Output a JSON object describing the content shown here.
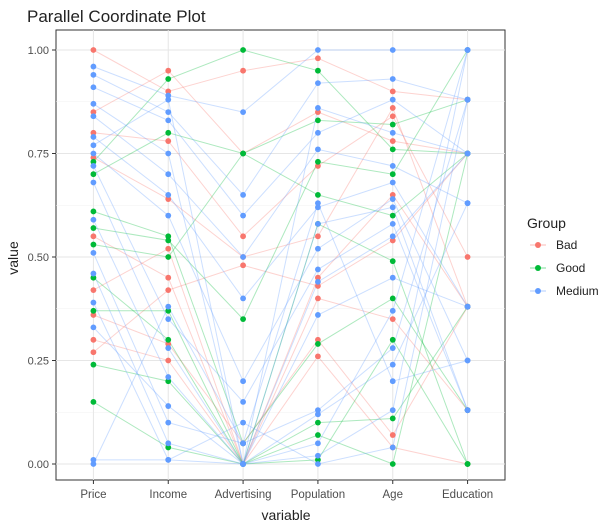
{
  "chart_data": {
    "type": "line",
    "title": "Parallel Coordinate Plot",
    "xlabel": "variable",
    "ylabel": "value",
    "categories": [
      "Price",
      "Income",
      "Advertising",
      "Population",
      "Age",
      "Education"
    ],
    "y_ticks": [
      "0.00",
      "0.25",
      "0.50",
      "0.75",
      "1.00"
    ],
    "ylim": [
      0,
      1
    ],
    "grid": true,
    "background": "#ffffff",
    "legend": {
      "title": "Group",
      "placement": "right",
      "entries": [
        {
          "name": "Bad",
          "color": "#F8766D"
        },
        {
          "name": "Good",
          "color": "#00BA38"
        },
        {
          "name": "Medium",
          "color": "#619CFF"
        }
      ]
    },
    "lines": [
      {
        "group": "Bad",
        "values": [
          1.0,
          0.9,
          0.95,
          0.98,
          0.9,
          0.88
        ]
      },
      {
        "group": "Bad",
        "values": [
          0.85,
          0.95,
          0.75,
          0.85,
          0.78,
          0.75
        ]
      },
      {
        "group": "Bad",
        "values": [
          0.8,
          0.78,
          0.55,
          0.72,
          0.84,
          0.5
        ]
      },
      {
        "group": "Bad",
        "values": [
          0.74,
          0.64,
          0.5,
          0.55,
          0.86,
          0.38
        ]
      },
      {
        "group": "Bad",
        "values": [
          0.55,
          0.45,
          0.0,
          0.45,
          0.65,
          0.38
        ]
      },
      {
        "group": "Bad",
        "values": [
          0.42,
          0.52,
          0.0,
          0.4,
          0.35,
          0.13
        ]
      },
      {
        "group": "Bad",
        "values": [
          0.36,
          0.29,
          0.05,
          0.3,
          0.07,
          0.38
        ]
      },
      {
        "group": "Bad",
        "values": [
          0.3,
          0.25,
          0.0,
          0.26,
          0.04,
          0.0
        ]
      },
      {
        "group": "Bad",
        "values": [
          0.27,
          0.42,
          0.48,
          0.43,
          0.54,
          0.75
        ]
      },
      {
        "group": "Good",
        "values": [
          0.73,
          0.93,
          1.0,
          0.95,
          0.76,
          0.75
        ]
      },
      {
        "group": "Good",
        "values": [
          0.7,
          0.8,
          0.75,
          0.83,
          0.82,
          0.88
        ]
      },
      {
        "group": "Good",
        "values": [
          0.57,
          0.54,
          0.35,
          0.73,
          0.7,
          1.0
        ]
      },
      {
        "group": "Good",
        "values": [
          0.53,
          0.5,
          0.75,
          0.65,
          0.6,
          0.75
        ]
      },
      {
        "group": "Good",
        "values": [
          0.45,
          0.3,
          0.0,
          0.58,
          0.49,
          0.0
        ]
      },
      {
        "group": "Good",
        "values": [
          0.24,
          0.2,
          0.0,
          0.1,
          0.11,
          0.38
        ]
      },
      {
        "group": "Good",
        "values": [
          0.15,
          0.04,
          0.0,
          0.07,
          0.0,
          0.75
        ]
      },
      {
        "group": "Good",
        "values": [
          0.61,
          0.55,
          0.05,
          0.29,
          0.4,
          0.13
        ]
      },
      {
        "group": "Good",
        "values": [
          0.37,
          0.37,
          0.0,
          0.01,
          0.3,
          0.0
        ]
      },
      {
        "group": "Medium",
        "values": [
          0.96,
          0.89,
          0.85,
          1.0,
          1.0,
          1.0
        ]
      },
      {
        "group": "Medium",
        "values": [
          0.94,
          0.85,
          0.65,
          0.92,
          0.93,
          0.88
        ]
      },
      {
        "group": "Medium",
        "values": [
          0.91,
          0.83,
          0.6,
          0.8,
          0.88,
          0.75
        ]
      },
      {
        "group": "Medium",
        "values": [
          0.84,
          0.7,
          0.5,
          0.76,
          0.72,
          0.63
        ]
      },
      {
        "group": "Medium",
        "values": [
          0.79,
          0.65,
          0.4,
          0.62,
          0.68,
          0.38
        ]
      },
      {
        "group": "Medium",
        "values": [
          0.75,
          0.6,
          0.2,
          0.52,
          0.64,
          0.25
        ]
      },
      {
        "group": "Medium",
        "values": [
          0.72,
          0.35,
          0.15,
          0.47,
          0.58,
          0.13
        ]
      },
      {
        "group": "Medium",
        "values": [
          0.68,
          0.28,
          0.0,
          0.44,
          0.55,
          0.75
        ]
      },
      {
        "group": "Medium",
        "values": [
          0.59,
          0.21,
          0.0,
          0.36,
          0.45,
          0.38
        ]
      },
      {
        "group": "Medium",
        "values": [
          0.51,
          0.1,
          0.05,
          0.13,
          0.28,
          0.88
        ]
      },
      {
        "group": "Medium",
        "values": [
          0.46,
          0.05,
          0.0,
          0.02,
          0.13,
          1.0
        ]
      },
      {
        "group": "Medium",
        "values": [
          0.39,
          0.01,
          0.1,
          0.0,
          0.04,
          0.88
        ]
      },
      {
        "group": "Medium",
        "values": [
          0.33,
          0.14,
          0.0,
          0.58,
          0.62,
          0.13
        ]
      },
      {
        "group": "Medium",
        "values": [
          0.01,
          0.01,
          0.0,
          0.86,
          0.8,
          0.75
        ]
      },
      {
        "group": "Medium",
        "values": [
          0.0,
          0.38,
          0.05,
          0.63,
          0.2,
          0.25
        ]
      },
      {
        "group": "Medium",
        "values": [
          0.87,
          0.75,
          0.0,
          0.12,
          0.24,
          0.63
        ]
      },
      {
        "group": "Medium",
        "values": [
          0.77,
          0.88,
          0.0,
          0.05,
          0.37,
          1.0
        ]
      }
    ]
  }
}
